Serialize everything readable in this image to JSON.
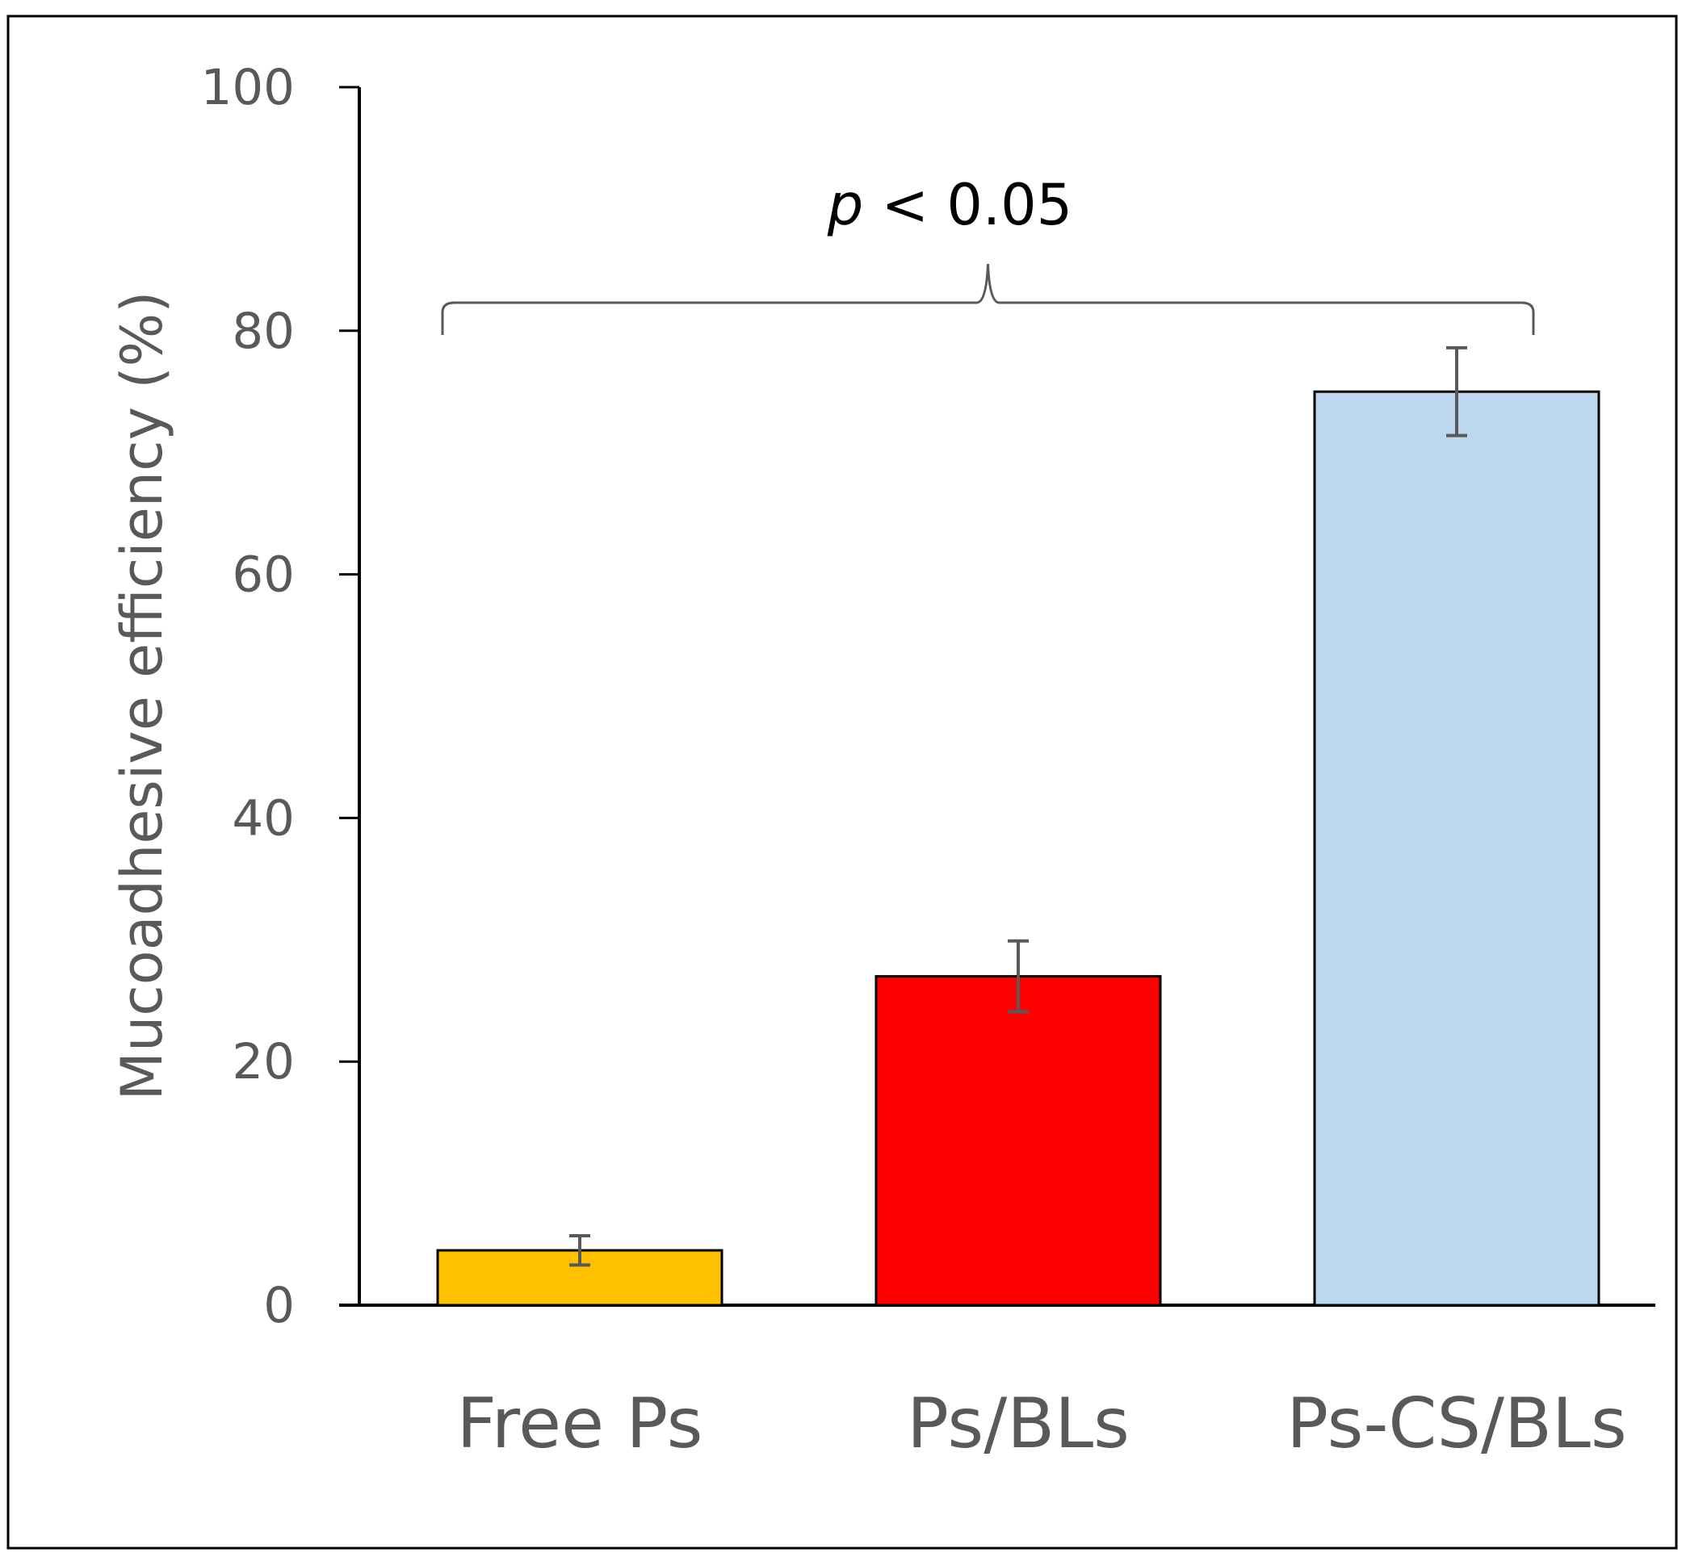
{
  "chart_data": {
    "type": "bar",
    "categories": [
      "Free Ps",
      "Ps/BLs",
      "Ps-CS/BLs"
    ],
    "values": [
      4.5,
      27,
      75
    ],
    "errors": [
      1.2,
      2.9,
      3.6
    ],
    "colors": [
      "#FFC000",
      "#FF0000",
      "#BDD7EE"
    ],
    "ylabel": "Mucoadhesive efficiency (%)",
    "ylim": [
      0,
      100
    ],
    "yticks": [
      0,
      20,
      40,
      60,
      80,
      100
    ],
    "grid": false,
    "significance": {
      "p": "p",
      "rest": " < 0.05",
      "from_category": 0,
      "to_category": 2
    }
  }
}
